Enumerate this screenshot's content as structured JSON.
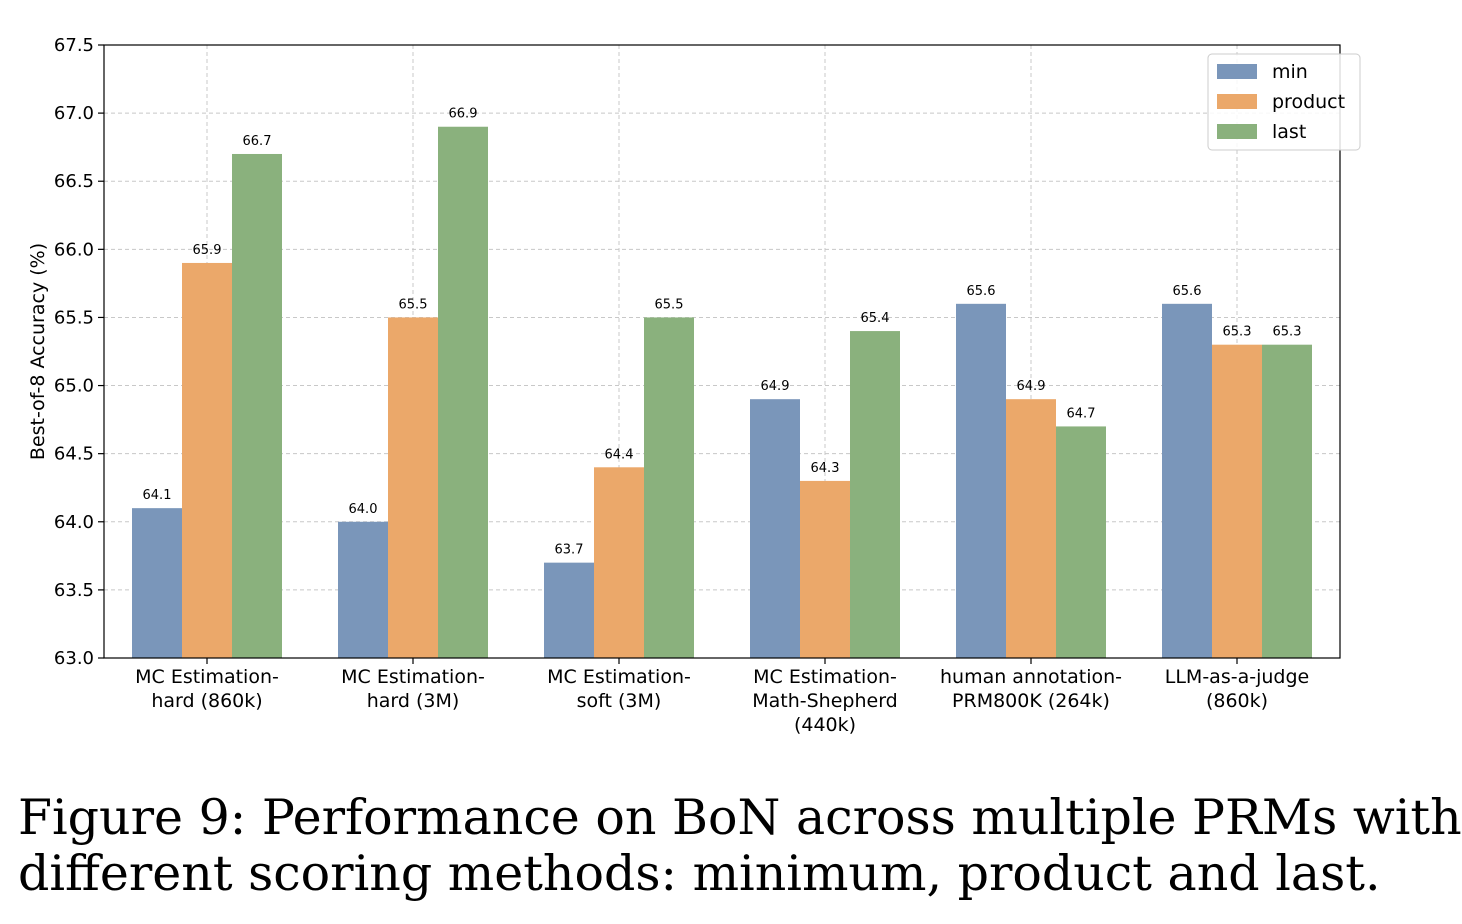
{
  "chart_data": {
    "type": "bar",
    "categories": [
      [
        "MC Estimation-",
        "hard (860k)"
      ],
      [
        "MC Estimation-",
        "hard (3M)"
      ],
      [
        "MC Estimation-",
        "soft (3M)"
      ],
      [
        "MC Estimation-",
        "Math-Shepherd",
        "(440k)"
      ],
      [
        "human annotation-",
        "PRM800K (264k)"
      ],
      [
        "LLM-as-a-judge",
        "(860k)"
      ]
    ],
    "series": [
      {
        "name": "min",
        "color": "#7A96BA",
        "values": [
          64.1,
          64.0,
          63.7,
          64.9,
          65.6,
          65.6
        ],
        "labels": [
          "64.1",
          "64.0",
          "63.7",
          "64.9",
          "65.6",
          "65.6"
        ]
      },
      {
        "name": "product",
        "color": "#EBA86A",
        "values": [
          65.9,
          65.5,
          64.4,
          64.3,
          64.9,
          65.3
        ],
        "labels": [
          "65.9",
          "65.5",
          "64.4",
          "64.3",
          "64.9",
          "65.3"
        ]
      },
      {
        "name": "last",
        "color": "#8AB17D",
        "values": [
          66.7,
          66.9,
          65.5,
          65.4,
          64.7,
          65.3
        ],
        "labels": [
          "66.7",
          "66.9",
          "65.5",
          "65.4",
          "64.7",
          "65.3"
        ]
      }
    ],
    "ylabel": "Best-of-8 Accuracy (%)",
    "ylim": [
      63.0,
      67.5
    ],
    "yticks": [
      "63.0",
      "63.5",
      "64.0",
      "64.5",
      "65.0",
      "65.5",
      "66.0",
      "66.5",
      "67.0",
      "67.5"
    ],
    "grid": true,
    "legend_position": "top-right"
  },
  "caption": {
    "line1": "Figure 9: Performance on BoN across multiple PRMs with",
    "line2": "different scoring methods: minimum, product and last."
  }
}
